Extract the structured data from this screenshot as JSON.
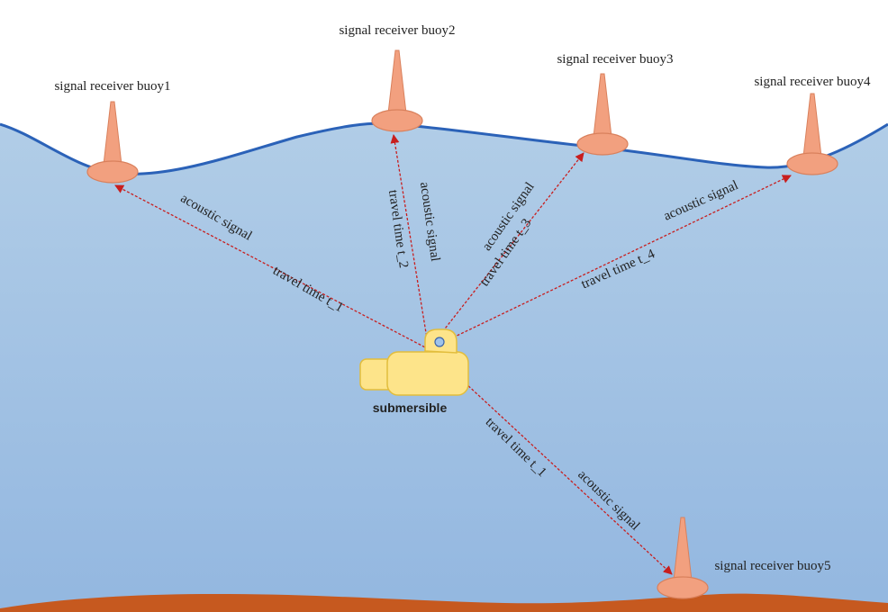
{
  "colors": {
    "water_top": "#b1cde7",
    "water_bottom": "#93b7e0",
    "surface_line": "#2b62b8",
    "seabed": "#c6591f",
    "buoy": "#f2a07f",
    "buoy_stroke": "#d9805c",
    "signal": "#c81e1e",
    "submersible": "#fde48a",
    "submersible_stroke": "#e2bd3c"
  },
  "buoys": [
    {
      "id": "buoy1",
      "label": "signal receiver buoy1"
    },
    {
      "id": "buoy2",
      "label": "signal receiver buoy2"
    },
    {
      "id": "buoy3",
      "label": "signal receiver buoy3"
    },
    {
      "id": "buoy4",
      "label": "signal receiver buoy4"
    },
    {
      "id": "buoy5",
      "label": "signal receiver buoy5"
    }
  ],
  "submersible": {
    "label": "submersible"
  },
  "signals": [
    {
      "to": "buoy1",
      "name": "acoustic signal",
      "time": "travel time t_1"
    },
    {
      "to": "buoy2",
      "name": "acoustic signal",
      "time": "travel time t_2"
    },
    {
      "to": "buoy3",
      "name": "acoustic signal",
      "time": "travel time t_3"
    },
    {
      "to": "buoy4",
      "name": "acoustic signal",
      "time": "travel time t_4"
    },
    {
      "to": "buoy5",
      "name": "acoustic signal",
      "time": "travel time t_1"
    }
  ]
}
